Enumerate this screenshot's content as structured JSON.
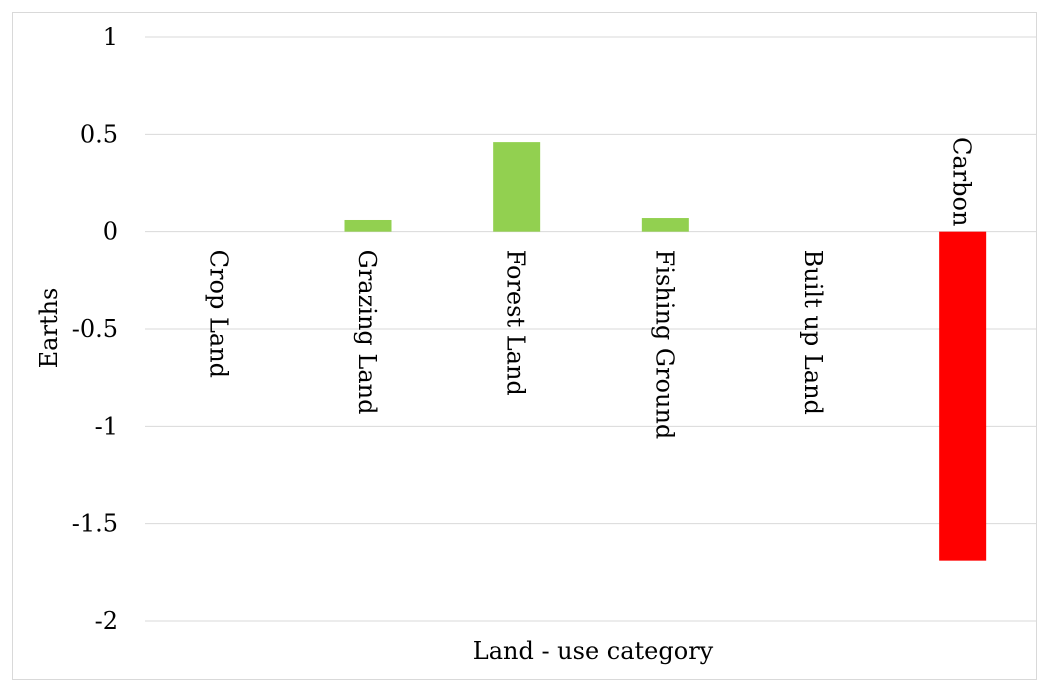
{
  "chart_data": {
    "type": "bar",
    "title": "",
    "xlabel": "Land - use category",
    "ylabel": "Earths",
    "ylim": [
      -2,
      1
    ],
    "yticks": [
      1,
      0.5,
      0,
      -0.5,
      -1,
      -1.5,
      -2
    ],
    "ytick_labels": [
      "1",
      "0.5",
      "0",
      "-0.5",
      "-1",
      "-1.5",
      "-2"
    ],
    "grid": true,
    "legend": "none",
    "categories": [
      "Crop Land",
      "Grazing Land",
      "Forest Land",
      "Fishing Ground",
      "Built up Land",
      "Carbon"
    ],
    "values": [
      0,
      0.06,
      0.46,
      0.07,
      0,
      -1.69
    ],
    "colors": {
      "positive": "#92d050",
      "negative": "#ff0000",
      "grid": "#d9d9d9",
      "text": "#000000"
    }
  }
}
